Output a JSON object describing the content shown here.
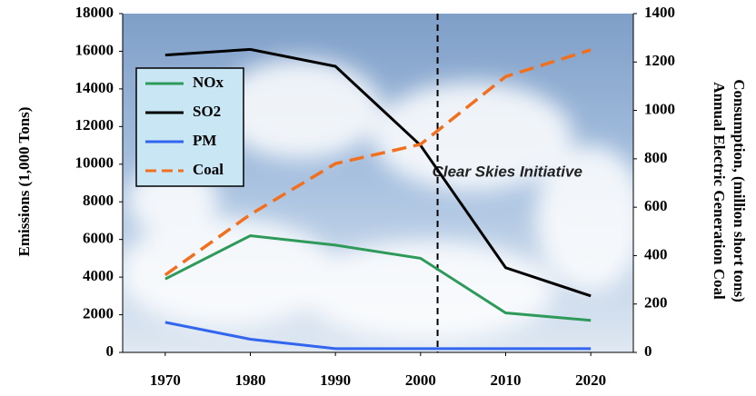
{
  "chart_data": {
    "type": "line",
    "ylabel": "Emissions (1,000 Tons)",
    "y2label": [
      "Annual Electric Generation Coal",
      "Consumption, (million short tons)"
    ],
    "x": [
      1970,
      1980,
      1990,
      2000,
      2010,
      2020
    ],
    "xlim": [
      1965,
      2025
    ],
    "xticks": [
      1970,
      1980,
      1990,
      2000,
      2010,
      2020
    ],
    "ylim": [
      0,
      18000
    ],
    "yticks": [
      0,
      2000,
      4000,
      6000,
      8000,
      10000,
      12000,
      14000,
      16000,
      18000
    ],
    "y2lim": [
      0,
      1400
    ],
    "y2ticks": [
      0,
      200,
      400,
      600,
      800,
      1000,
      1200,
      1400
    ],
    "series": [
      {
        "name": "NOx",
        "color": "#2e9a5a",
        "dash": false,
        "values": [
          3900,
          6200,
          5700,
          5000,
          2100,
          1700
        ]
      },
      {
        "name": "SO2",
        "color": "#000000",
        "dash": false,
        "values": [
          15800,
          16100,
          15200,
          11000,
          4500,
          3000
        ]
      },
      {
        "name": "PM",
        "color": "#3366ee",
        "dash": false,
        "values": [
          1600,
          700,
          200,
          200,
          200,
          200
        ]
      },
      {
        "name": "Coal",
        "color": "#f07020",
        "dash": true,
        "axis": "y2",
        "values": [
          320,
          570,
          780,
          860,
          1140,
          1250
        ]
      }
    ],
    "vline": {
      "x": 2002,
      "label": "Clear Skies Initiative"
    }
  }
}
